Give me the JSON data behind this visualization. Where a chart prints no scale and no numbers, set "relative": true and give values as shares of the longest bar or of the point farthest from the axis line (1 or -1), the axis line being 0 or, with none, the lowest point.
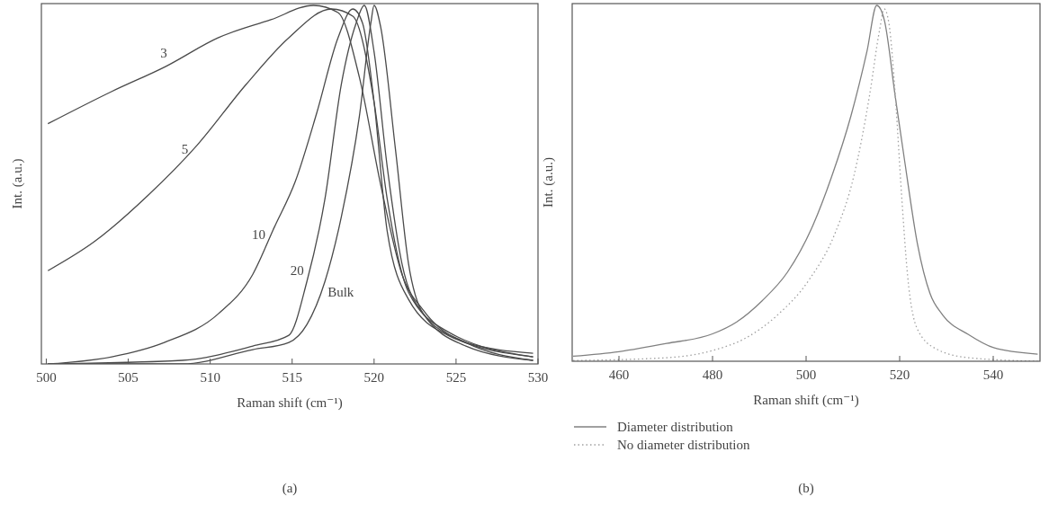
{
  "chart_data": [
    {
      "type": "line",
      "relative": true,
      "xlabel": "Raman shift (cm⁻¹)",
      "ylabel": "Int. (a.u.)",
      "xlim": [
        499.7,
        530
      ],
      "xticks": [
        500,
        505,
        510,
        515,
        520,
        525,
        530
      ],
      "tick_labels": "x",
      "grid": false,
      "legend": false,
      "line_style": "solid",
      "marker": "none",
      "annotations": [
        "(a)"
      ],
      "series": [
        {
          "name": "3",
          "color": "#4a4a4a",
          "x": [
            500.1,
            504.0,
            507.3,
            510.5,
            513.7,
            516.3,
            517.8,
            519.1,
            520.4,
            521.7,
            523.0,
            525.6,
            529.7
          ],
          "values": [
            0.67,
            0.76,
            0.83,
            0.91,
            0.96,
            1.0,
            0.98,
            0.8,
            0.5,
            0.25,
            0.15,
            0.06,
            0.03
          ]
        },
        {
          "name": "5",
          "color": "#4a4a4a",
          "x": [
            500.1,
            502.9,
            506.2,
            509.2,
            512.2,
            514.8,
            517.4,
            518.7,
            520.0,
            520.8,
            522.1,
            524.5,
            529.7
          ],
          "values": [
            0.26,
            0.34,
            0.47,
            0.61,
            0.78,
            0.91,
            0.99,
            0.97,
            0.73,
            0.46,
            0.2,
            0.09,
            0.02
          ]
        },
        {
          "name": "10",
          "color": "#4a4a4a",
          "x": [
            500.1,
            504.0,
            507.2,
            510.5,
            512.6,
            513.9,
            515.2,
            516.5,
            517.8,
            518.7,
            519.3,
            520.0,
            520.8,
            522.1,
            524.5,
            529.7
          ],
          "values": [
            0.0,
            0.02,
            0.06,
            0.14,
            0.25,
            0.38,
            0.51,
            0.7,
            0.91,
            0.99,
            0.95,
            0.73,
            0.37,
            0.18,
            0.08,
            0.02
          ]
        },
        {
          "name": "20",
          "color": "#4a4a4a",
          "x": [
            500.1,
            508.3,
            512.6,
            514.8,
            515.9,
            517.0,
            518.0,
            518.9,
            519.4,
            520.0,
            520.8,
            521.7,
            523.0,
            525.6,
            529.7
          ],
          "values": [
            0.0,
            0.01,
            0.05,
            0.08,
            0.23,
            0.46,
            0.78,
            0.95,
            1.0,
            0.87,
            0.55,
            0.28,
            0.14,
            0.06,
            0.01
          ]
        },
        {
          "name": "Bulk",
          "color": "#4a4a4a",
          "x": [
            500.1,
            508.3,
            512.6,
            514.8,
            515.9,
            517.0,
            518.0,
            519.1,
            519.8,
            520.0,
            520.4,
            521.3,
            522.1,
            523.0,
            525.6,
            529.7
          ],
          "values": [
            0.0,
            0.0,
            0.04,
            0.06,
            0.11,
            0.23,
            0.41,
            0.69,
            0.95,
            1.0,
            0.94,
            0.6,
            0.28,
            0.14,
            0.05,
            0.01
          ]
        }
      ]
    },
    {
      "type": "line",
      "relative": true,
      "xlabel": "Raman shift (cm⁻¹)",
      "ylabel": "Int. (a.u.)",
      "xlim": [
        450,
        550
      ],
      "xticks": [
        460,
        480,
        500,
        520,
        540
      ],
      "tick_labels": "x",
      "grid": false,
      "legend": "bottom",
      "marker": "none",
      "annotations": [
        "(b)"
      ],
      "series": [
        {
          "name": "Diameter distribution",
          "color": "#808080",
          "line_style": "solid",
          "x": [
            450.2,
            460,
            470.2,
            480.0,
            485.1,
            490.6,
            496.0,
            501.4,
            505.5,
            509.6,
            513.0,
            515.1,
            516.7,
            519.1,
            521.1,
            523.8,
            526.5,
            529.2,
            534.7,
            540.1,
            549.5
          ],
          "values": [
            0.014,
            0.027,
            0.05,
            0.077,
            0.11,
            0.17,
            0.25,
            0.38,
            0.52,
            0.69,
            0.87,
            1.0,
            0.96,
            0.74,
            0.56,
            0.33,
            0.19,
            0.13,
            0.075,
            0.038,
            0.02
          ]
        },
        {
          "name": "No diameter distribution",
          "color": "#a0a0a0",
          "line_style": "dotted",
          "x": [
            450.2,
            470.2,
            480.0,
            487.2,
            493.9,
            500.7,
            506.2,
            510.2,
            513.6,
            515.7,
            516.7,
            517.7,
            519.1,
            520.4,
            521.7,
            523.8,
            527.9,
            534.7,
            549.5
          ],
          "values": [
            0.002,
            0.01,
            0.03,
            0.066,
            0.13,
            0.23,
            0.36,
            0.52,
            0.75,
            0.93,
            0.99,
            0.95,
            0.74,
            0.47,
            0.24,
            0.09,
            0.034,
            0.01,
            0.0
          ]
        }
      ]
    }
  ]
}
